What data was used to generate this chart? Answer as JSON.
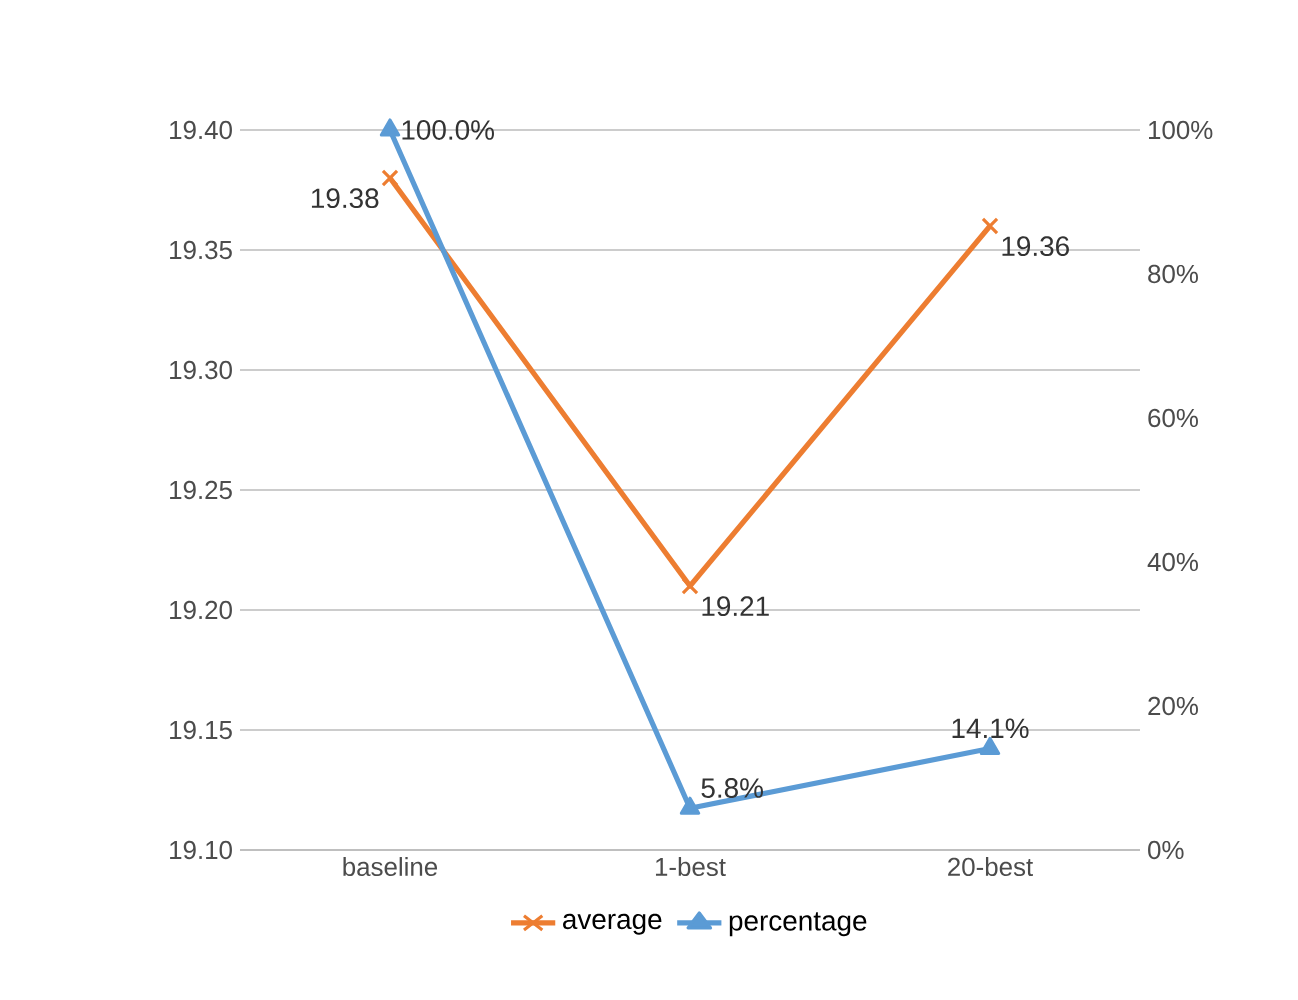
{
  "chart_data": {
    "type": "line",
    "categories": [
      "baseline",
      "1-best",
      "20-best"
    ],
    "series": [
      {
        "name": "average",
        "color": "#ed7d31",
        "marker": "cross",
        "values": [
          19.38,
          19.21,
          19.36
        ],
        "value_labels": [
          "19.38",
          "19.21",
          "19.36"
        ]
      },
      {
        "name": "percentage",
        "color": "#5b9bd5",
        "marker": "triangle",
        "axis": "y2",
        "values": [
          100,
          5.8,
          14.1
        ],
        "value_labels": [
          "100.0%",
          "5.8%",
          "14.1%"
        ]
      }
    ],
    "ylim": [
      19.1,
      19.4
    ],
    "yticks": [
      {
        "value": 19.1,
        "label": "19.10"
      },
      {
        "value": 19.15,
        "label": "19.15"
      },
      {
        "value": 19.2,
        "label": "19.20"
      },
      {
        "value": 19.25,
        "label": "19.25"
      },
      {
        "value": 19.3,
        "label": "19.30"
      },
      {
        "value": 19.35,
        "label": "19.35"
      },
      {
        "value": 19.4,
        "label": "19.40"
      }
    ],
    "y2lim": [
      0,
      100
    ],
    "y2ticks": [
      {
        "value": 0,
        "label": "0%"
      },
      {
        "value": 20,
        "label": "20%"
      },
      {
        "value": 40,
        "label": "40%"
      },
      {
        "value": 60,
        "label": "60%"
      },
      {
        "value": 80,
        "label": "80%"
      },
      {
        "value": 100,
        "label": "100%"
      }
    ],
    "grid": "y",
    "legend": "bottom"
  }
}
